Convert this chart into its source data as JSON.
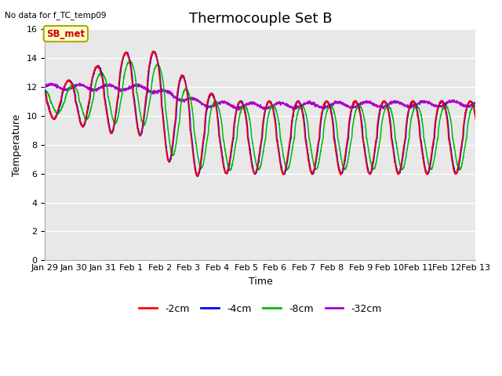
{
  "title": "Thermocouple Set B",
  "subtitle": "No data for f_TC_temp09",
  "xlabel": "Time",
  "ylabel": "Temperature",
  "xlim": [
    0,
    15
  ],
  "ylim": [
    0,
    16
  ],
  "yticks": [
    0,
    2,
    4,
    6,
    8,
    10,
    12,
    14,
    16
  ],
  "xtick_labels": [
    "Jan 29",
    "Jan 30",
    "Jan 31",
    "Feb 1",
    "Feb 2",
    "Feb 3",
    "Feb 4",
    "Feb 5",
    "Feb 6",
    "Feb 7",
    "Feb 8",
    "Feb 9",
    "Feb 10",
    "Feb 11",
    "Feb 12",
    "Feb 13"
  ],
  "colors": {
    "2cm": "#FF0000",
    "4cm": "#0000FF",
    "8cm": "#00BB00",
    "32cm": "#AA00CC"
  },
  "legend_labels": [
    "-2cm",
    "-4cm",
    "-8cm",
    "-32cm"
  ],
  "plot_bg": "#E8E8E8",
  "annotation_box": {
    "text": "SB_met",
    "fg": "#CC0000",
    "bg": "#FFFFCC",
    "border": "#AAAA00"
  },
  "title_fontsize": 13,
  "label_fontsize": 9,
  "tick_fontsize": 8
}
